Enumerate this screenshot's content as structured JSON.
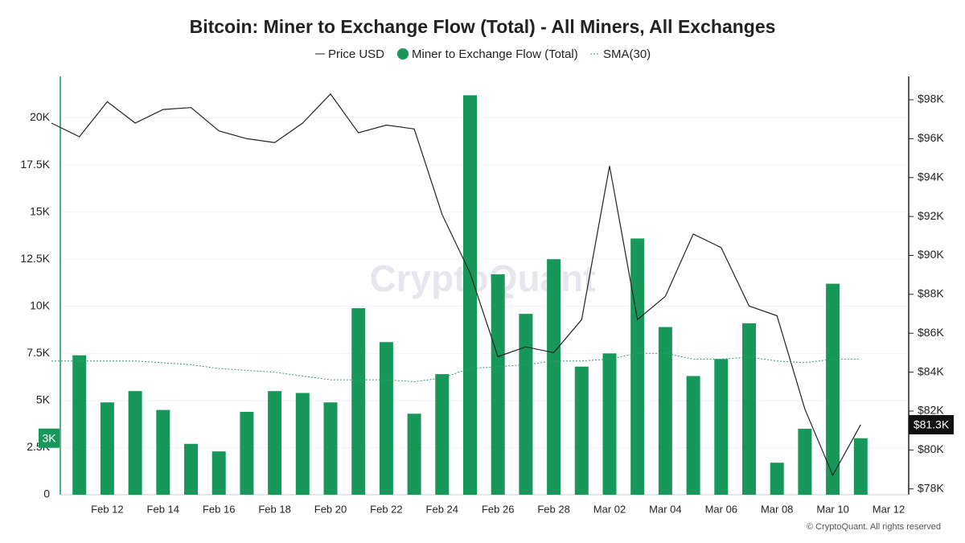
{
  "chart_data": {
    "type": "bar",
    "title": "Bitcoin: Miner to Exchange Flow (Total) - All Miners, All Exchanges",
    "watermark": "CryptoQuant",
    "footer": "© CryptoQuant. All rights reserved",
    "categories": [
      null,
      null,
      "Feb 12",
      null,
      "Feb 14",
      null,
      "Feb 16",
      null,
      "Feb 18",
      null,
      "Feb 20",
      null,
      "Feb 22",
      null,
      "Feb 24",
      null,
      "Feb 26",
      null,
      "Feb 28",
      null,
      "Mar 02",
      null,
      "Mar 04",
      null,
      "Mar 06",
      null,
      "Mar 08",
      null,
      "Mar 10",
      null,
      "Mar 12"
    ],
    "series": [
      {
        "name": "Price USD",
        "type": "line",
        "axis": "y2",
        "color": "#222222",
        "values": [
          96800,
          96100,
          97900,
          96800,
          97500,
          97600,
          96400,
          96000,
          95800,
          96800,
          98300,
          96300,
          96700,
          96500,
          92100,
          89100,
          84800,
          85300,
          85000,
          86700,
          94600,
          86700,
          87900,
          91100,
          90400,
          87400,
          86900,
          82100,
          78700,
          81300,
          null
        ],
        "value_labels": [
          null,
          null,
          null,
          null,
          null,
          null,
          null,
          null,
          null,
          null,
          null,
          null,
          null,
          null,
          null,
          null,
          null,
          null,
          null,
          null,
          null,
          null,
          null,
          null,
          null,
          null,
          null,
          null,
          null,
          "$81.3K",
          null
        ]
      },
      {
        "name": "Miner to Exchange Flow (Total)",
        "type": "bar",
        "color": "#17985a",
        "values": [
          null,
          7400,
          4900,
          5500,
          4500,
          2700,
          2300,
          4400,
          5500,
          5400,
          4900,
          9900,
          8100,
          4300,
          6400,
          21200,
          11700,
          9600,
          12500,
          6800,
          7500,
          13600,
          8900,
          6300,
          7200,
          9100,
          1700,
          3500,
          11200,
          3000,
          null
        ],
        "value_labels": [
          null,
          null,
          null,
          null,
          null,
          null,
          null,
          null,
          null,
          null,
          null,
          null,
          null,
          null,
          null,
          null,
          null,
          null,
          null,
          null,
          null,
          null,
          null,
          null,
          null,
          null,
          null,
          null,
          null,
          "3K",
          null
        ]
      },
      {
        "name": "SMA(30)",
        "type": "line",
        "dashed": true,
        "color": "#2e9e63",
        "values": [
          7100,
          7100,
          7100,
          7100,
          7000,
          6900,
          6700,
          6600,
          6500,
          6300,
          6100,
          6100,
          6100,
          6000,
          6200,
          6700,
          6800,
          6900,
          7100,
          7100,
          7200,
          7500,
          7500,
          7200,
          7200,
          7300,
          7100,
          7000,
          7200,
          7200,
          null
        ]
      }
    ],
    "ylim": [
      0,
      22200
    ],
    "yticks": [
      0,
      {
        "value": 2500,
        "label": "2.5K"
      },
      {
        "value": 5000,
        "label": "5K"
      },
      {
        "value": 7500,
        "label": "7.5K"
      },
      {
        "value": 10000,
        "label": "10K"
      },
      {
        "value": 12500,
        "label": "12.5K"
      },
      {
        "value": 15000,
        "label": "15K"
      },
      {
        "value": 17500,
        "label": "17.5K"
      },
      {
        "value": 20000,
        "label": "20K"
      }
    ],
    "y2lim": [
      77700,
      99200
    ],
    "y2ticks": [
      {
        "value": 78000,
        "label": "$78K"
      },
      {
        "value": 80000,
        "label": "$80K"
      },
      {
        "value": 82000,
        "label": "$82K"
      },
      {
        "value": 84000,
        "label": "$84K"
      },
      {
        "value": 86000,
        "label": "$86K"
      },
      {
        "value": 88000,
        "label": "$88K"
      },
      {
        "value": 90000,
        "label": "$90K"
      },
      {
        "value": 92000,
        "label": "$92K"
      },
      {
        "value": 94000,
        "label": "$94K"
      },
      {
        "value": 96000,
        "label": "$96K"
      },
      {
        "value": 98000,
        "label": "$98K"
      }
    ],
    "grid": true,
    "legend": "top"
  }
}
